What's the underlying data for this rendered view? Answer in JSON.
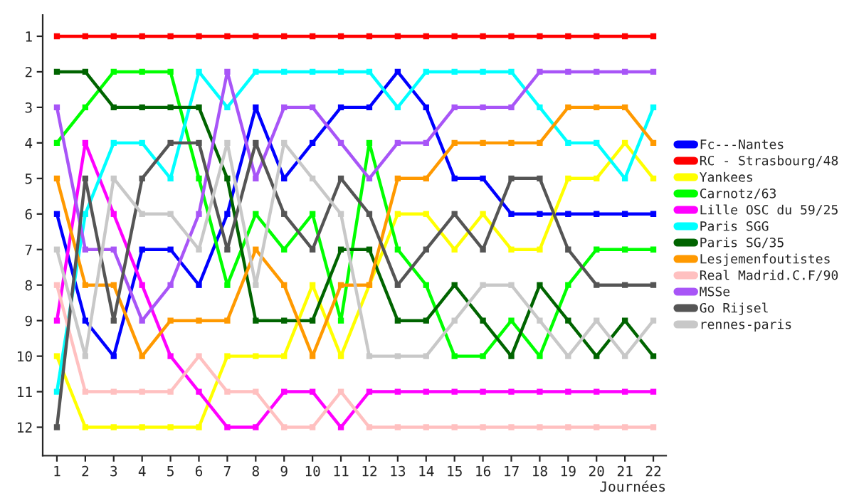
{
  "chart_data": {
    "type": "line",
    "xlabel": "Journées",
    "x": [
      1,
      2,
      3,
      4,
      5,
      6,
      7,
      8,
      9,
      10,
      11,
      12,
      13,
      14,
      15,
      16,
      17,
      18,
      19,
      20,
      21,
      22
    ],
    "xlim": [
      0.5,
      22.45
    ],
    "xticks": [
      1,
      2,
      3,
      4,
      5,
      6,
      7,
      8,
      9,
      10,
      11,
      12,
      13,
      14,
      15,
      16,
      17,
      18,
      19,
      20,
      21,
      22
    ],
    "ylim": [
      12.8,
      0.4
    ],
    "yticks": [
      1,
      2,
      3,
      4,
      5,
      6,
      7,
      8,
      9,
      10,
      11,
      12
    ],
    "grid": false,
    "legend": "right",
    "marker": "square",
    "line_style": "solid",
    "series": [
      {
        "name": "Fc---Nantes",
        "color": "#0000ff",
        "values": [
          6,
          9,
          10,
          7,
          7,
          8,
          6,
          3,
          5,
          4,
          3,
          3,
          2,
          3,
          5,
          5,
          6,
          6,
          6,
          6,
          6,
          6
        ]
      },
      {
        "name": "RC - Strasbourg/48",
        "color": "#ff0000",
        "values": [
          1,
          1,
          1,
          1,
          1,
          1,
          1,
          1,
          1,
          1,
          1,
          1,
          1,
          1,
          1,
          1,
          1,
          1,
          1,
          1,
          1,
          1
        ]
      },
      {
        "name": "Yankees",
        "color": "#ffff00",
        "values": [
          10,
          12,
          12,
          12,
          12,
          12,
          10,
          10,
          10,
          8,
          10,
          8,
          6,
          6,
          7,
          6,
          7,
          7,
          5,
          5,
          4,
          5
        ]
      },
      {
        "name": "Carnotz/63",
        "color": "#00ff00",
        "values": [
          4,
          3,
          2,
          2,
          2,
          5,
          8,
          6,
          7,
          6,
          9,
          4,
          7,
          8,
          10,
          10,
          9,
          10,
          8,
          7,
          7,
          7
        ]
      },
      {
        "name": "Lille OSC du 59/25",
        "color": "#ff00ff",
        "values": [
          9,
          4,
          6,
          8,
          10,
          11,
          12,
          12,
          11,
          11,
          12,
          11,
          11,
          11,
          11,
          11,
          11,
          11,
          11,
          11,
          11,
          11
        ]
      },
      {
        "name": "Paris SGG",
        "color": "#00ffff",
        "values": [
          11,
          6,
          4,
          4,
          5,
          2,
          3,
          2,
          2,
          2,
          2,
          2,
          3,
          2,
          2,
          2,
          2,
          3,
          4,
          4,
          5,
          3
        ]
      },
      {
        "name": "Paris SG/35",
        "color": "#006400",
        "values": [
          2,
          2,
          3,
          3,
          3,
          3,
          5,
          9,
          9,
          9,
          7,
          7,
          9,
          9,
          8,
          9,
          10,
          8,
          9,
          10,
          9,
          10
        ]
      },
      {
        "name": "Lesjemenfoutistes",
        "color": "#ff9900",
        "values": [
          5,
          8,
          8,
          10,
          9,
          9,
          9,
          7,
          8,
          10,
          8,
          8,
          5,
          5,
          4,
          4,
          4,
          4,
          3,
          3,
          3,
          4
        ]
      },
      {
        "name": "Real Madrid.C.F/90",
        "color": "#ffc0c0",
        "values": [
          8,
          11,
          11,
          11,
          11,
          10,
          11,
          11,
          12,
          12,
          11,
          12,
          12,
          12,
          12,
          12,
          12,
          12,
          12,
          12,
          12,
          12
        ]
      },
      {
        "name": "MSSe",
        "color": "#a855f7",
        "values": [
          3,
          7,
          7,
          9,
          8,
          6,
          2,
          5,
          3,
          3,
          4,
          5,
          4,
          4,
          3,
          3,
          3,
          2,
          2,
          2,
          2,
          2
        ]
      },
      {
        "name": "Go Rijsel",
        "color": "#555555",
        "values": [
          12,
          5,
          9,
          5,
          4,
          4,
          7,
          4,
          6,
          7,
          5,
          6,
          8,
          7,
          6,
          7,
          5,
          5,
          7,
          8,
          8,
          8
        ]
      },
      {
        "name": "rennes-paris",
        "color": "#c8c8c8",
        "values": [
          7,
          10,
          5,
          6,
          6,
          7,
          4,
          8,
          4,
          5,
          6,
          10,
          10,
          10,
          9,
          8,
          8,
          9,
          10,
          9,
          10,
          9
        ]
      }
    ]
  }
}
